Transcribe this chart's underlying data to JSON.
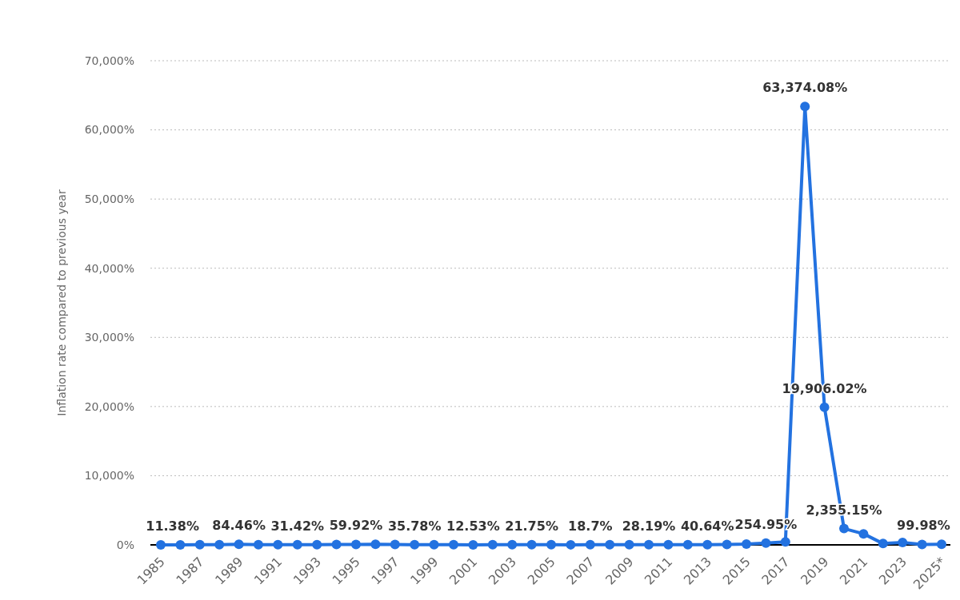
{
  "chart_data": {
    "type": "line",
    "ylabel": "Inflation rate compared to previous year",
    "categories": [
      "1985",
      null,
      "1987",
      null,
      "1989",
      null,
      "1991",
      null,
      "1993",
      null,
      "1995",
      null,
      "1997",
      null,
      "1999",
      null,
      "2001",
      null,
      "2003",
      null,
      "2005",
      null,
      "2007",
      null,
      "2009",
      null,
      "2011",
      null,
      "2013",
      null,
      "2015",
      null,
      "2017",
      null,
      "2019",
      null,
      "2021",
      null,
      "2023",
      null,
      "2025*"
    ],
    "series": [
      {
        "color": "#2372e0",
        "values": [
          11.38,
          12,
          28,
          29,
          84.46,
          41,
          34,
          31.42,
          38,
          61,
          59.92,
          100,
          50,
          35.78,
          24,
          16,
          12.53,
          22,
          31,
          21.75,
          16,
          14,
          18.7,
          31,
          27,
          28.19,
          26,
          21,
          40.64,
          62,
          122,
          254.95,
          438,
          63374.08,
          19906.02,
          2355.15,
          1600,
          190,
          340,
          50,
          99.98
        ],
        "value_labels": [
          "11.38%",
          null,
          null,
          null,
          "84.46%",
          null,
          null,
          "31.42%",
          null,
          null,
          "59.92%",
          null,
          null,
          "35.78%",
          null,
          null,
          "12.53%",
          null,
          null,
          "21.75%",
          null,
          null,
          "18.7%",
          null,
          null,
          "28.19%",
          null,
          null,
          "40.64%",
          null,
          null,
          "254.95%",
          null,
          "63,374.08%",
          "19,906.02%",
          "2,355.15%",
          null,
          null,
          null,
          null,
          "99.98%"
        ]
      }
    ],
    "ylim": [
      0,
      70000
    ],
    "yticks": [
      {
        "value": 0,
        "label": "0%"
      },
      {
        "value": 10000,
        "label": "10,000%"
      },
      {
        "value": 20000,
        "label": "20,000%"
      },
      {
        "value": 30000,
        "label": "30,000%"
      },
      {
        "value": 40000,
        "label": "40,000%"
      },
      {
        "value": 50000,
        "label": "50,000%"
      },
      {
        "value": 60000,
        "label": "60,000%"
      },
      {
        "value": 70000,
        "label": "70,000%"
      }
    ],
    "grid": "y",
    "marker": "circle",
    "line_style": "solid"
  }
}
